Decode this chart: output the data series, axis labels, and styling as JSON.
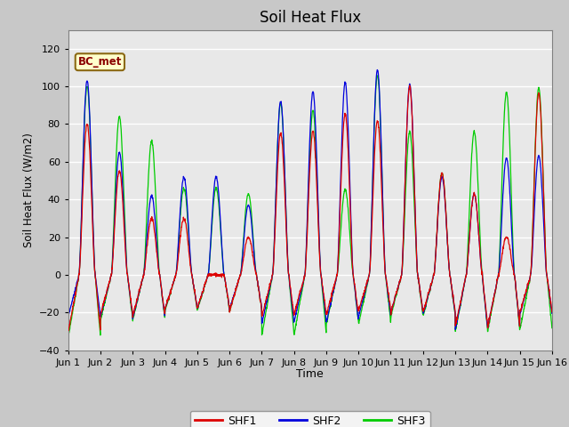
{
  "title": "Soil Heat Flux",
  "ylabel": "Soil Heat Flux (W/m2)",
  "xlabel": "Time",
  "ylim": [
    -40,
    130
  ],
  "yticks": [
    -40,
    -20,
    0,
    20,
    40,
    60,
    80,
    100,
    120
  ],
  "xtick_labels": [
    "Jun 1",
    "Jun 2",
    "Jun 3",
    "Jun 4",
    "Jun 5",
    "Jun 6",
    "Jun 7",
    "Jun 8",
    "Jun 9",
    "Jun 10",
    "Jun 11",
    "Jun 12",
    "Jun 13",
    "Jun 14",
    "Jun 15",
    "Jun 16"
  ],
  "fig_bg_color": "#c8c8c8",
  "plot_bg_color": "#e8e8e8",
  "colors": {
    "SHF1": "#dd0000",
    "SHF2": "#0000dd",
    "SHF3": "#00cc00"
  },
  "linewidth": 0.9,
  "annotation_text": "BC_met",
  "day_peaks": {
    "SHF1": [
      80,
      55,
      30,
      30,
      0,
      20,
      75,
      76,
      85,
      82,
      100,
      54,
      43,
      20,
      96
    ],
    "SHF2": [
      103,
      65,
      42,
      52,
      52,
      37,
      92,
      97,
      102,
      109,
      101,
      52,
      43,
      62,
      63
    ],
    "SHF3": [
      100,
      84,
      71,
      46,
      46,
      43,
      91,
      87,
      45,
      106,
      76,
      54,
      76,
      97,
      99
    ]
  },
  "night_troughs": {
    "SHF1": [
      -30,
      -21,
      -22,
      -18,
      -18,
      -19,
      -22,
      -21,
      -21,
      -19,
      -20,
      -20,
      -27,
      -28,
      -20
    ],
    "SHF2": [
      -22,
      -22,
      -23,
      -18,
      -18,
      -18,
      -26,
      -25,
      -25,
      -22,
      -20,
      -21,
      -29,
      -28,
      -21
    ],
    "SHF3": [
      -33,
      -24,
      -24,
      -19,
      -19,
      -19,
      -32,
      -32,
      -26,
      -26,
      -22,
      -22,
      -30,
      -30,
      -29
    ]
  }
}
